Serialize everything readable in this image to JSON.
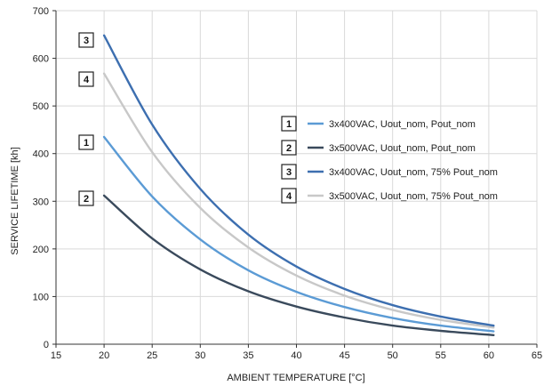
{
  "chart_data": {
    "type": "line",
    "xlabel": "AMBIENT TEMPERATURE [°C]",
    "ylabel": "SERVICE LIFETIME [kh]",
    "xlim": [
      15,
      65
    ],
    "ylim": [
      0,
      700
    ],
    "xticks": [
      15,
      20,
      25,
      30,
      35,
      40,
      45,
      50,
      55,
      60,
      65
    ],
    "yticks": [
      0,
      100,
      200,
      300,
      400,
      500,
      600,
      700
    ],
    "grid": true,
    "legend_position": "right",
    "x": [
      20,
      25,
      30,
      35,
      40,
      45,
      50,
      55,
      60.5
    ],
    "series": [
      {
        "id": "1",
        "name": "3x400VAC, Uout_nom, Pout_nom",
        "color": "#5b9bd5",
        "values": [
          435,
          310,
          220,
          155,
          110,
          78,
          55,
          39,
          27
        ]
      },
      {
        "id": "2",
        "name": "3x500VAC, Uout_nom, Pout_nom",
        "color": "#3a4a5c",
        "values": [
          312,
          222,
          157,
          111,
          79,
          56,
          39,
          28,
          19
        ]
      },
      {
        "id": "3",
        "name": "3x400VAC, Uout_nom, 75% Pout_nom",
        "color": "#3d6fb0",
        "values": [
          648,
          461,
          326,
          230,
          163,
          116,
          82,
          58,
          39
        ]
      },
      {
        "id": "4",
        "name": "3x500VAC, Uout_nom, 75% Pout_nom",
        "color": "#c8c8c8",
        "values": [
          568,
          403,
          286,
          203,
          144,
          102,
          72,
          51,
          35
        ]
      }
    ],
    "curve_labels_order": [
      "3",
      "4",
      "1",
      "2"
    ]
  }
}
